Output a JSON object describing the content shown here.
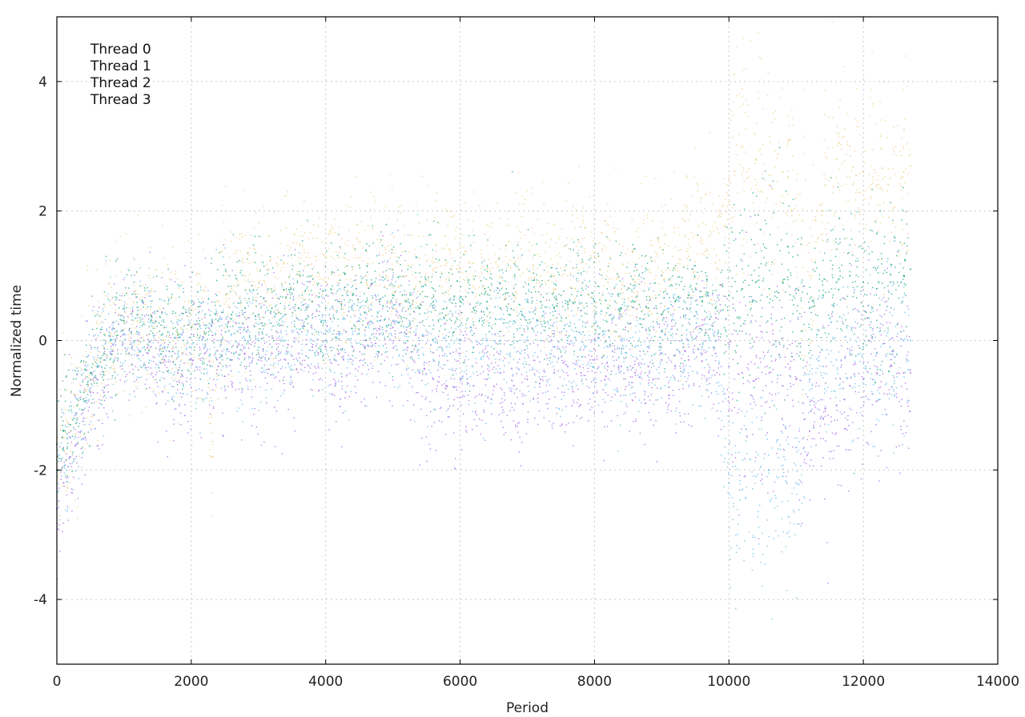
{
  "chart_data": {
    "type": "scatter",
    "title": "",
    "xlabel": "Period",
    "ylabel": "Normalized time",
    "xlim": [
      0,
      14000
    ],
    "ylim": [
      -5,
      5
    ],
    "xticks": [
      0,
      2000,
      4000,
      6000,
      8000,
      10000,
      12000,
      14000
    ],
    "yticks": [
      -4,
      -2,
      0,
      2,
      4
    ],
    "xtick_labels": [
      "0",
      "2000",
      "4000",
      "6000",
      "8000",
      "10000",
      "12000",
      "14000"
    ],
    "ytick_labels": [
      "-4",
      "-2",
      "0",
      "2",
      "4"
    ],
    "grid": true,
    "legend_position": "top-left",
    "series": [
      {
        "name": "Thread 0",
        "color": "#9b59e6",
        "points": [
          [
            0,
            -2.6
          ],
          [
            100,
            -2.2
          ],
          [
            200,
            -1.8
          ],
          [
            300,
            -1.6
          ],
          [
            400,
            -1.2
          ],
          [
            500,
            -0.8
          ],
          [
            600,
            -0.6
          ],
          [
            700,
            -0.8
          ],
          [
            800,
            -0.2
          ],
          [
            1000,
            0.1
          ],
          [
            1200,
            0.0
          ],
          [
            1400,
            -0.1
          ],
          [
            1600,
            -0.3
          ],
          [
            1800,
            -0.5
          ],
          [
            2000,
            -0.3
          ],
          [
            2200,
            -0.2
          ],
          [
            2400,
            -0.4
          ],
          [
            2600,
            -0.3
          ],
          [
            2800,
            -0.2
          ],
          [
            3000,
            -0.3
          ],
          [
            3200,
            -0.2
          ],
          [
            3400,
            -0.3
          ],
          [
            3600,
            -0.2
          ],
          [
            3800,
            -0.1
          ],
          [
            4000,
            -0.1
          ],
          [
            4200,
            -0.2
          ],
          [
            4400,
            -0.1
          ],
          [
            4600,
            0.0
          ],
          [
            4800,
            0.1
          ],
          [
            5000,
            0.2
          ],
          [
            5200,
            0.1
          ],
          [
            5400,
            -0.5
          ],
          [
            5600,
            -0.6
          ],
          [
            5800,
            -0.7
          ],
          [
            6000,
            -0.6
          ],
          [
            6200,
            -0.7
          ],
          [
            6400,
            -0.6
          ],
          [
            6600,
            -0.5
          ],
          [
            6800,
            -0.7
          ],
          [
            7000,
            -0.6
          ],
          [
            7200,
            -0.6
          ],
          [
            7400,
            -0.5
          ],
          [
            7600,
            -0.4
          ],
          [
            7800,
            -0.5
          ],
          [
            8000,
            -0.3
          ],
          [
            8200,
            -0.4
          ],
          [
            8400,
            -0.4
          ],
          [
            8600,
            -0.5
          ],
          [
            8800,
            -0.4
          ],
          [
            9000,
            -0.3
          ],
          [
            9200,
            -0.4
          ],
          [
            9400,
            -0.3
          ],
          [
            9600,
            -0.2
          ],
          [
            9800,
            -0.2
          ],
          [
            10000,
            -0.4
          ],
          [
            10200,
            -0.5
          ],
          [
            10400,
            -0.6
          ],
          [
            10600,
            -0.5
          ],
          [
            10800,
            -0.7
          ],
          [
            11000,
            -0.6
          ],
          [
            11200,
            -1.4
          ],
          [
            11400,
            -1.2
          ],
          [
            11600,
            -1.0
          ],
          [
            11800,
            -0.7
          ],
          [
            12000,
            -0.6
          ],
          [
            12200,
            -0.5
          ],
          [
            12400,
            -0.4
          ],
          [
            12600,
            -0.5
          ],
          [
            12700,
            -0.5
          ]
        ]
      },
      {
        "name": "Thread 1",
        "color": "#009e73",
        "points": [
          [
            0,
            -1.6
          ],
          [
            100,
            -1.4
          ],
          [
            200,
            -1.3
          ],
          [
            300,
            -1.0
          ],
          [
            400,
            -0.8
          ],
          [
            500,
            -0.5
          ],
          [
            600,
            -0.4
          ],
          [
            700,
            -0.2
          ],
          [
            800,
            0.0
          ],
          [
            1000,
            0.3
          ],
          [
            1200,
            0.4
          ],
          [
            1400,
            0.3
          ],
          [
            1600,
            0.2
          ],
          [
            1800,
            0.1
          ],
          [
            2000,
            0.2
          ],
          [
            2200,
            0.1
          ],
          [
            2400,
            0.3
          ],
          [
            2600,
            0.4
          ],
          [
            2800,
            0.5
          ],
          [
            3000,
            0.4
          ],
          [
            3200,
            0.5
          ],
          [
            3400,
            0.4
          ],
          [
            3600,
            0.5
          ],
          [
            3800,
            0.6
          ],
          [
            4000,
            0.5
          ],
          [
            4200,
            0.6
          ],
          [
            4400,
            0.7
          ],
          [
            4600,
            0.6
          ],
          [
            4800,
            0.6
          ],
          [
            5000,
            0.7
          ],
          [
            5200,
            0.6
          ],
          [
            5400,
            0.5
          ],
          [
            5600,
            0.6
          ],
          [
            5800,
            0.5
          ],
          [
            6000,
            0.6
          ],
          [
            6200,
            0.5
          ],
          [
            6400,
            0.6
          ],
          [
            6600,
            0.5
          ],
          [
            6800,
            0.7
          ],
          [
            7000,
            0.6
          ],
          [
            7200,
            0.6
          ],
          [
            7400,
            0.5
          ],
          [
            7600,
            0.6
          ],
          [
            7800,
            0.7
          ],
          [
            8000,
            0.6
          ],
          [
            8200,
            0.5
          ],
          [
            8400,
            0.5
          ],
          [
            8600,
            0.6
          ],
          [
            8800,
            0.5
          ],
          [
            9000,
            0.4
          ],
          [
            9200,
            0.6
          ],
          [
            9400,
            0.7
          ],
          [
            9600,
            0.6
          ],
          [
            9800,
            0.5
          ],
          [
            10000,
            0.7
          ],
          [
            10200,
            0.8
          ],
          [
            10400,
            0.9
          ],
          [
            10600,
            0.8
          ],
          [
            10800,
            0.9
          ],
          [
            11000,
            0.8
          ],
          [
            11200,
            0.5
          ],
          [
            11400,
            0.7
          ],
          [
            11600,
            0.9
          ],
          [
            11800,
            1.0
          ],
          [
            12000,
            0.9
          ],
          [
            12200,
            0.8
          ],
          [
            12400,
            0.9
          ],
          [
            12600,
            1.0
          ],
          [
            12700,
            1.1
          ]
        ]
      },
      {
        "name": "Thread 2",
        "color": "#56b4e9",
        "points": [
          [
            0,
            -2.0
          ],
          [
            100,
            -1.7
          ],
          [
            200,
            -1.5
          ],
          [
            300,
            -1.2
          ],
          [
            400,
            -0.9
          ],
          [
            500,
            -0.6
          ],
          [
            600,
            -0.4
          ],
          [
            700,
            -0.3
          ],
          [
            800,
            0.0
          ],
          [
            1000,
            0.1
          ],
          [
            1200,
            0.1
          ],
          [
            1400,
            0.0
          ],
          [
            1600,
            -0.1
          ],
          [
            1800,
            -0.2
          ],
          [
            2000,
            -0.1
          ],
          [
            2200,
            -0.1
          ],
          [
            2400,
            0.0
          ],
          [
            2600,
            0.1
          ],
          [
            2800,
            0.0
          ],
          [
            3000,
            0.0
          ],
          [
            3200,
            -0.1
          ],
          [
            3400,
            0.0
          ],
          [
            3600,
            0.1
          ],
          [
            3800,
            0.1
          ],
          [
            4000,
            0.0
          ],
          [
            4200,
            0.1
          ],
          [
            4400,
            0.1
          ],
          [
            4600,
            0.2
          ],
          [
            4800,
            0.3
          ],
          [
            5000,
            0.3
          ],
          [
            5200,
            0.2
          ],
          [
            5400,
            0.0
          ],
          [
            5600,
            0.0
          ],
          [
            5800,
            -0.1
          ],
          [
            6000,
            0.0
          ],
          [
            6200,
            -0.1
          ],
          [
            6400,
            0.0
          ],
          [
            6600,
            0.0
          ],
          [
            6800,
            0.1
          ],
          [
            7000,
            0.0
          ],
          [
            7200,
            0.0
          ],
          [
            7400,
            -0.1
          ],
          [
            7600,
            0.0
          ],
          [
            7800,
            0.1
          ],
          [
            8000,
            0.0
          ],
          [
            8200,
            -0.1
          ],
          [
            8400,
            -0.2
          ],
          [
            8600,
            -0.1
          ],
          [
            8800,
            -0.1
          ],
          [
            9000,
            -0.2
          ],
          [
            9200,
            0.0
          ],
          [
            9400,
            0.0
          ],
          [
            9600,
            -0.1
          ],
          [
            9800,
            0.0
          ],
          [
            10000,
            -2.2
          ],
          [
            10200,
            -2.3
          ],
          [
            10400,
            -2.1
          ],
          [
            10600,
            -2.0
          ],
          [
            10800,
            -2.1
          ],
          [
            11000,
            -2.2
          ],
          [
            11200,
            -0.6
          ],
          [
            11400,
            -0.4
          ],
          [
            11600,
            -0.3
          ],
          [
            11800,
            -0.2
          ],
          [
            12000,
            -0.1
          ],
          [
            12200,
            -0.2
          ],
          [
            12400,
            -0.1
          ],
          [
            12600,
            0.0
          ],
          [
            12700,
            0.0
          ]
        ]
      },
      {
        "name": "Thread 3",
        "color": "#e6b84a",
        "points": [
          [
            0,
            -1.8
          ],
          [
            100,
            -1.5
          ],
          [
            200,
            -1.4
          ],
          [
            300,
            -1.2
          ],
          [
            400,
            -0.9
          ],
          [
            500,
            -0.6
          ],
          [
            600,
            -0.3
          ],
          [
            700,
            -0.1
          ],
          [
            800,
            0.1
          ],
          [
            1000,
            0.3
          ],
          [
            1200,
            0.3
          ],
          [
            1400,
            0.4
          ],
          [
            1600,
            0.2
          ],
          [
            1800,
            0.1
          ],
          [
            2000,
            0.2
          ],
          [
            2200,
            0.1
          ],
          [
            2300,
            -1.8
          ],
          [
            2400,
            0.6
          ],
          [
            2600,
            0.8
          ],
          [
            2800,
            1.0
          ],
          [
            3000,
            0.9
          ],
          [
            3200,
            0.8
          ],
          [
            3400,
            0.9
          ],
          [
            3600,
            1.0
          ],
          [
            3800,
            1.0
          ],
          [
            4000,
            0.9
          ],
          [
            4200,
            1.0
          ],
          [
            4400,
            1.1
          ],
          [
            4600,
            1.0
          ],
          [
            4800,
            1.0
          ],
          [
            5000,
            1.1
          ],
          [
            5200,
            1.0
          ],
          [
            5400,
            0.9
          ],
          [
            5600,
            1.1
          ],
          [
            5800,
            1.2
          ],
          [
            6000,
            1.1
          ],
          [
            6200,
            1.0
          ],
          [
            6400,
            1.1
          ],
          [
            6600,
            1.0
          ],
          [
            6800,
            1.2
          ],
          [
            7000,
            1.1
          ],
          [
            7200,
            1.0
          ],
          [
            7400,
            1.0
          ],
          [
            7600,
            1.0
          ],
          [
            7800,
            1.2
          ],
          [
            8000,
            1.3
          ],
          [
            8200,
            0.9
          ],
          [
            8400,
            0.8
          ],
          [
            8600,
            1.0
          ],
          [
            8800,
            1.1
          ],
          [
            9000,
            1.0
          ],
          [
            9200,
            1.1
          ],
          [
            9400,
            1.3
          ],
          [
            9600,
            1.5
          ],
          [
            9800,
            1.2
          ],
          [
            10000,
            2.5
          ],
          [
            10200,
            3.0
          ],
          [
            10400,
            2.8
          ],
          [
            10600,
            2.4
          ],
          [
            10800,
            2.6
          ],
          [
            11000,
            2.2
          ],
          [
            11200,
            1.0
          ],
          [
            11400,
            2.0
          ],
          [
            11600,
            2.8
          ],
          [
            11800,
            3.0
          ],
          [
            12000,
            2.6
          ],
          [
            12200,
            2.4
          ],
          [
            12400,
            2.5
          ],
          [
            12600,
            2.6
          ],
          [
            12700,
            2.7
          ]
        ]
      }
    ]
  }
}
